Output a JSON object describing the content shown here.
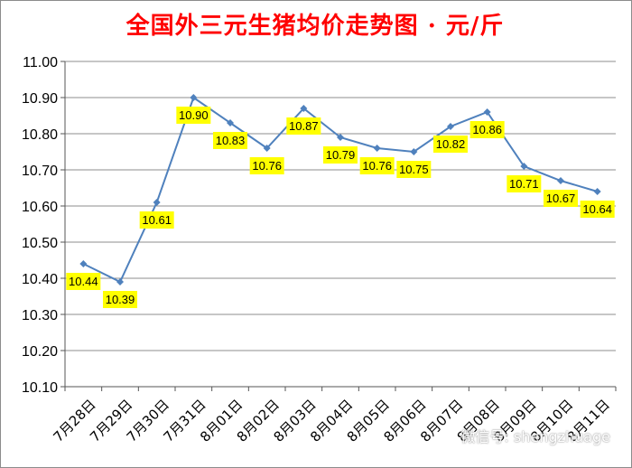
{
  "chart_data": {
    "type": "line",
    "title": "全国外三元生猪均价走势图 · 元/斤",
    "categories": [
      "7月28日",
      "7月29日",
      "7月30日",
      "7月31日",
      "8月01日",
      "8月02日",
      "8月03日",
      "8月04日",
      "8月05日",
      "8月06日",
      "8月07日",
      "8月08日",
      "8月09日",
      "8月10日",
      "8月11日"
    ],
    "values": [
      10.44,
      10.39,
      10.61,
      10.9,
      10.83,
      10.76,
      10.87,
      10.79,
      10.76,
      10.75,
      10.82,
      10.86,
      10.71,
      10.67,
      10.64
    ],
    "data_labels": [
      "10.44",
      "10.39",
      "10.61",
      "10.90",
      "10.83",
      "10.76",
      "10.87",
      "10.79",
      "10.76",
      "10.75",
      "10.82",
      "10.86",
      "10.71",
      "10.67",
      "10.64"
    ],
    "ylim": [
      10.1,
      11.0
    ],
    "yticks": [
      "10.10",
      "10.20",
      "10.30",
      "10.40",
      "10.50",
      "10.60",
      "10.70",
      "10.80",
      "10.90",
      "11.00"
    ],
    "grid": true,
    "colors": {
      "line": "#4f81bd",
      "label_bg": "#ffff00",
      "title": "#ff0000",
      "grid": "#8c8c8c"
    }
  },
  "watermark": "微信号: shengzhuage"
}
